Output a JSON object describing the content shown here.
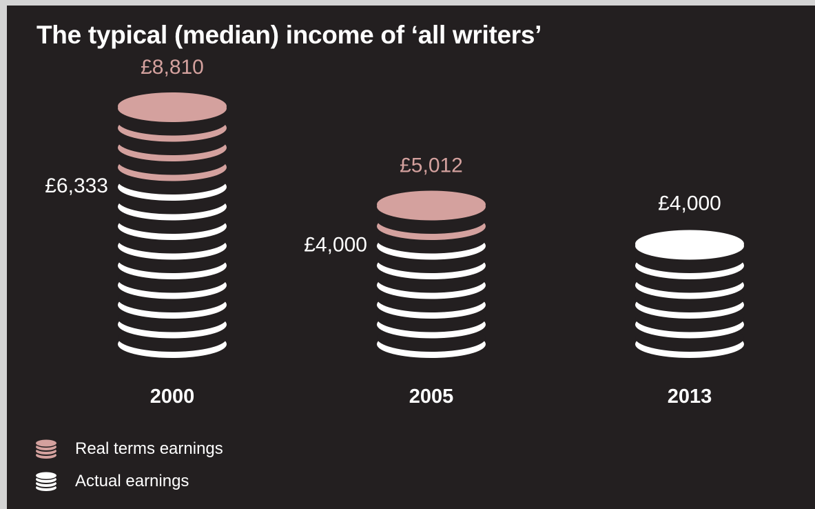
{
  "title": "The typical (median) income of ‘all writers’",
  "legend": {
    "real_label": "Real terms earnings",
    "actual_label": "Actual earnings"
  },
  "colors": {
    "background": "#231f20",
    "real": "#d4a19e",
    "actual": "#ffffff",
    "real_label": "#d4a19e",
    "actual_label": "#ffffff",
    "year_label": "#ffffff"
  },
  "chart_data": {
    "type": "bar",
    "categories": [
      "2000",
      "2005",
      "2013"
    ],
    "series": [
      {
        "name": "Real terms earnings",
        "values": [
          8810,
          5012,
          4000
        ]
      },
      {
        "name": "Actual earnings",
        "values": [
          6333,
          4000,
          4000
        ]
      }
    ],
    "real_labels": [
      "£8,810",
      "£5,012",
      ""
    ],
    "actual_labels": [
      "£6,333",
      "£4,000",
      "£4,000"
    ],
    "legend_position": "bottom-left"
  }
}
